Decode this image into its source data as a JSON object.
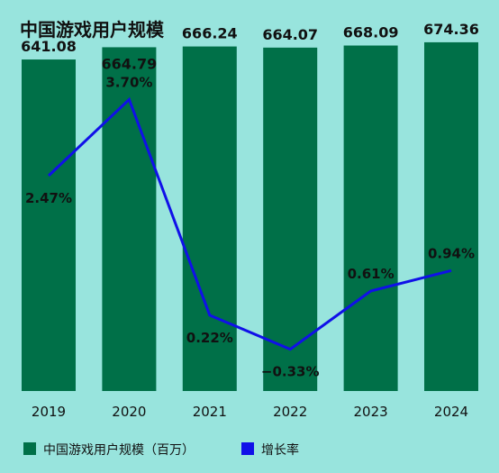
{
  "chart_data": {
    "type": "bar",
    "title": "中国游戏用户规模",
    "categories": [
      "2019",
      "2020",
      "2021",
      "2022",
      "2023",
      "2024"
    ],
    "series": [
      {
        "name": "中国游戏用户规模（百万）",
        "type": "bar",
        "values": [
          641.08,
          664.79,
          666.24,
          664.07,
          668.09,
          674.36
        ],
        "labels": [
          "641.08",
          "664.79",
          "666.24",
          "664.07",
          "668.09",
          "674.36"
        ],
        "color": "#007048"
      },
      {
        "name": "增长率",
        "type": "line",
        "values": [
          2.47,
          3.7,
          0.22,
          -0.33,
          0.61,
          0.94
        ],
        "labels": [
          "2.47%",
          "3.70%",
          "0.22%",
          "−0.33%",
          "0.61%",
          "0.94%"
        ],
        "color": "#1010E8"
      }
    ],
    "bar_ylim": [
      0,
      730
    ],
    "line_ylim": [
      -0.8,
      4.2
    ],
    "grid": false,
    "legend": "bottom-left"
  }
}
